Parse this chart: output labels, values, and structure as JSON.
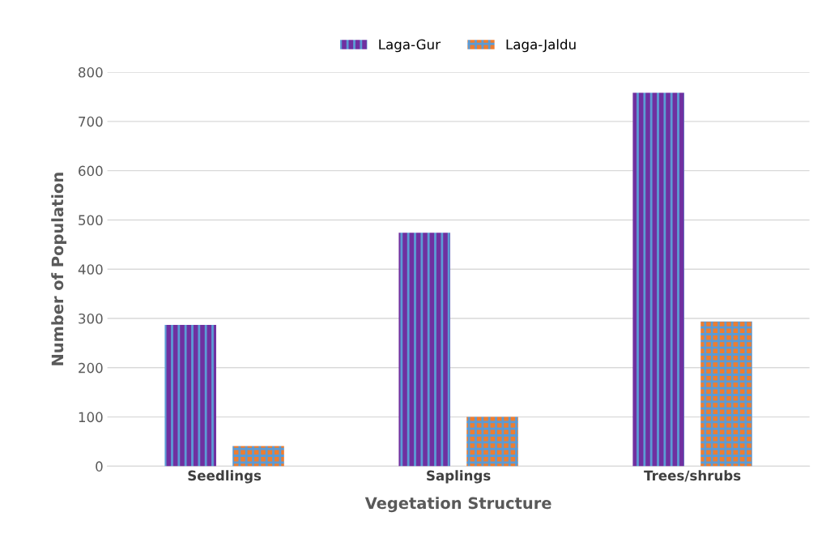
{
  "chart_data": {
    "type": "bar",
    "xlabel": "Vegetation Structure",
    "ylabel": "Number of Population",
    "categories": [
      "Seedlings",
      "Saplings",
      "Trees/shrubs"
    ],
    "series": [
      {
        "name": "Laga-Gur",
        "color": "#7030a0",
        "values": [
          287,
          474,
          758
        ]
      },
      {
        "name": "Laga-Jaldu",
        "color": "#ed7d31",
        "values": [
          41,
          100,
          294
        ]
      }
    ],
    "ylim": [
      0,
      800
    ],
    "yticks": [
      0,
      100,
      200,
      300,
      400,
      500,
      600,
      700,
      800
    ],
    "grid": "y",
    "legend": "top"
  }
}
